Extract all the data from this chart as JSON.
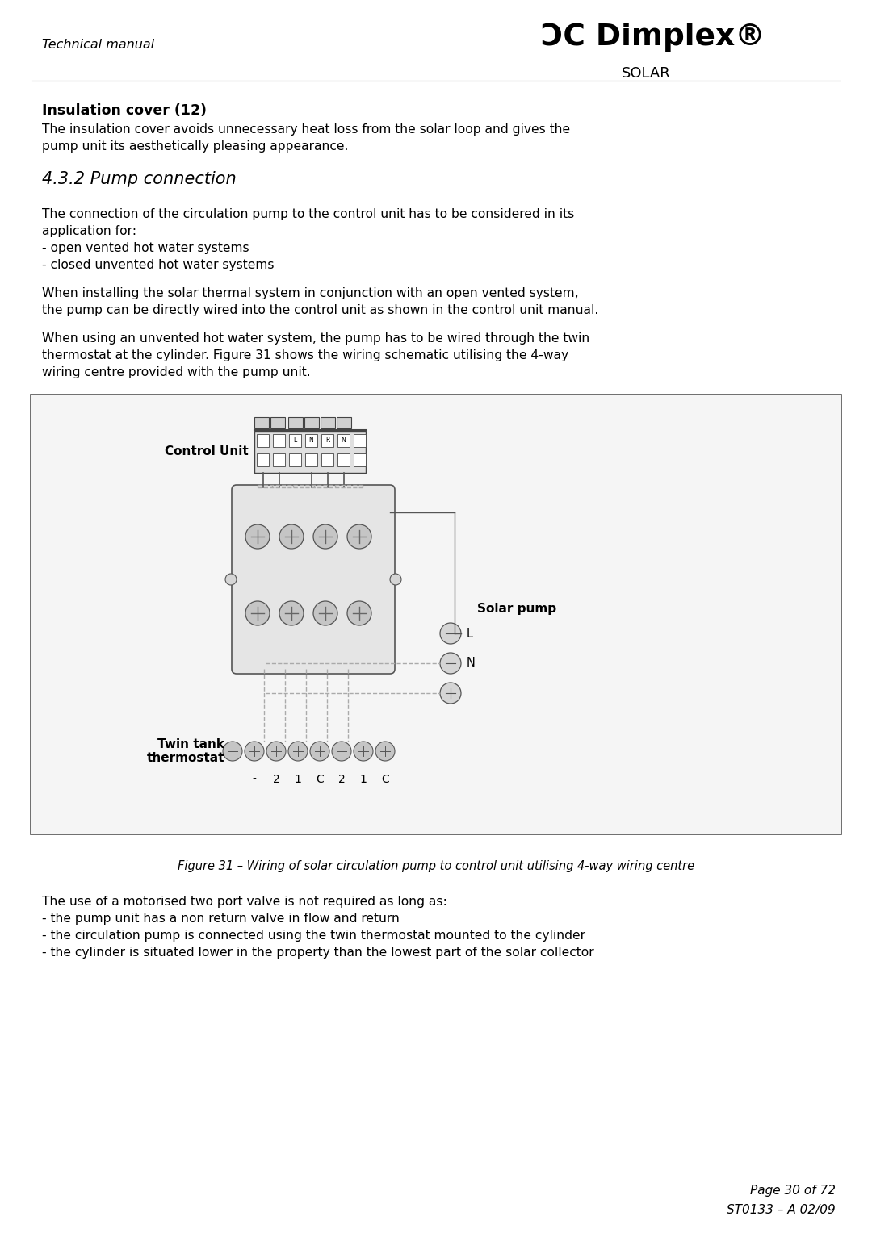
{
  "bg_color": "#ffffff",
  "text_color": "#000000",
  "page_width": 10.8,
  "page_height": 15.33,
  "header_italic": "Technical manual",
  "logo_sub": "SOLAR",
  "section_title": "Insulation cover (12)",
  "section_body_l1": "The insulation cover avoids unnecessary heat loss from the solar loop and gives the",
  "section_body_l2": "pump unit its aesthetically pleasing appearance.",
  "section2_title": "4.3.2 Pump connection",
  "p1_l1": "The connection of the circulation pump to the control unit has to be considered in its",
  "p1_l2": "application for:",
  "p1_l3": "- open vented hot water systems",
  "p1_l4": "- closed unvented hot water systems",
  "p2_l1": "When installing the solar thermal system in conjunction with an open vented system,",
  "p2_l2": "the pump can be directly wired into the control unit as shown in the control unit manual.",
  "p3_l1": "When using an unvented hot water system, the pump has to be wired through the twin",
  "p3_l2": "thermostat at the cylinder. Figure 31 shows the wiring schematic utilising the 4-way",
  "p3_l3": "wiring centre provided with the pump unit.",
  "figure_caption": "Figure 31 – Wiring of solar circulation pump to control unit utilising 4-way wiring centre",
  "s3_l1": "The use of a motorised two port valve is not required as long as:",
  "s3_l2": "- the pump unit has a non return valve in flow and return",
  "s3_l3": "- the circulation pump is connected using the twin thermostat mounted to the cylinder",
  "s3_l4": "- the cylinder is situated lower in the property than the lowest part of the solar collector",
  "footer_line1": "Page 30 of 72",
  "footer_line2": "ST0133 – A 02/09",
  "label_control_unit": "Control Unit",
  "label_solar_pump": "Solar pump",
  "label_twin_tank_1": "Twin tank",
  "label_twin_tank_2": "thermostat",
  "label_L": "L",
  "label_N": "N",
  "dash_color": "#aaaaaa",
  "line_color": "#555555",
  "box_fill": "#f5f5f5",
  "terminal_fill": "#d0d0d0",
  "body_fill": "#e0e0e0"
}
